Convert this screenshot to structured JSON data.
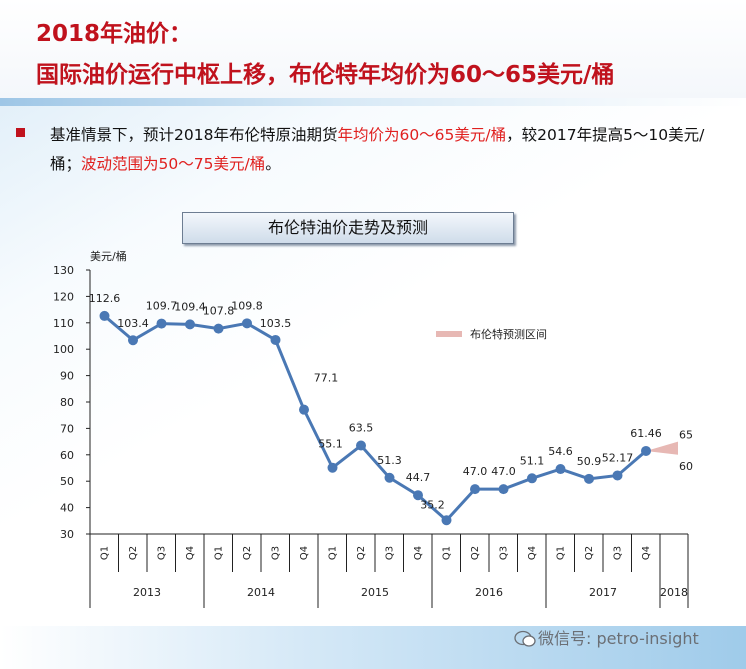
{
  "header": {
    "title_line1": "2018年油价：",
    "title_line2": "国际油价运行中枢上移，布伦特年均价为60～65美元/桶"
  },
  "paragraph": {
    "seg1": "基准情景下，预计2018年布伦特原油期货",
    "seg2_red": "年均价为60～65美元/桶",
    "seg3": "，较2017年提高5～10美元/桶；",
    "seg4_red": "波动范围为50～75美元/桶",
    "seg5": "。"
  },
  "colors": {
    "title_red": "#c0121d",
    "line": "#4a78b4",
    "band": "#e7b8b4"
  },
  "chart_data": {
    "type": "line",
    "title": "布伦特油价走势及预测",
    "ylabel": "美元/桶",
    "ylim": [
      30,
      130
    ],
    "yticks": [
      30,
      40,
      50,
      60,
      70,
      80,
      90,
      100,
      110,
      120,
      130
    ],
    "grid": false,
    "quarters": [
      "Q1",
      "Q2",
      "Q3",
      "Q4",
      "Q1",
      "Q2",
      "Q3",
      "Q4",
      "Q1",
      "Q2",
      "Q3",
      "Q4",
      "Q1",
      "Q2",
      "Q3",
      "Q4",
      "Q1",
      "Q2",
      "Q3",
      "Q4"
    ],
    "years": [
      "2013",
      "2014",
      "2015",
      "2016",
      "2017",
      "2018"
    ],
    "series": [
      {
        "values": [
          112.6,
          103.4,
          109.7,
          109.4,
          107.8,
          109.8,
          103.5,
          77.1,
          55.1,
          63.5,
          51.3,
          44.7,
          35.2,
          47.0,
          47.0,
          51.1,
          54.6,
          50.9,
          52.17,
          61.46
        ],
        "labels": [
          "112.6",
          "103.4",
          "109.7",
          "109.4",
          "107.8",
          "109.8",
          "103.5",
          "77.1",
          "55.1",
          "63.5",
          "51.3",
          "44.7",
          "35.2",
          "47.0",
          "47.0",
          "51.1",
          "54.6",
          "50.9",
          "52.17",
          "61.46"
        ]
      }
    ],
    "forecast_band": {
      "name": "布伦特预测区间",
      "low": 60,
      "high": 65,
      "low_label": "60",
      "high_label": "65"
    },
    "legend_position": "right"
  },
  "watermark": {
    "text": "微信号: petro-insight"
  }
}
